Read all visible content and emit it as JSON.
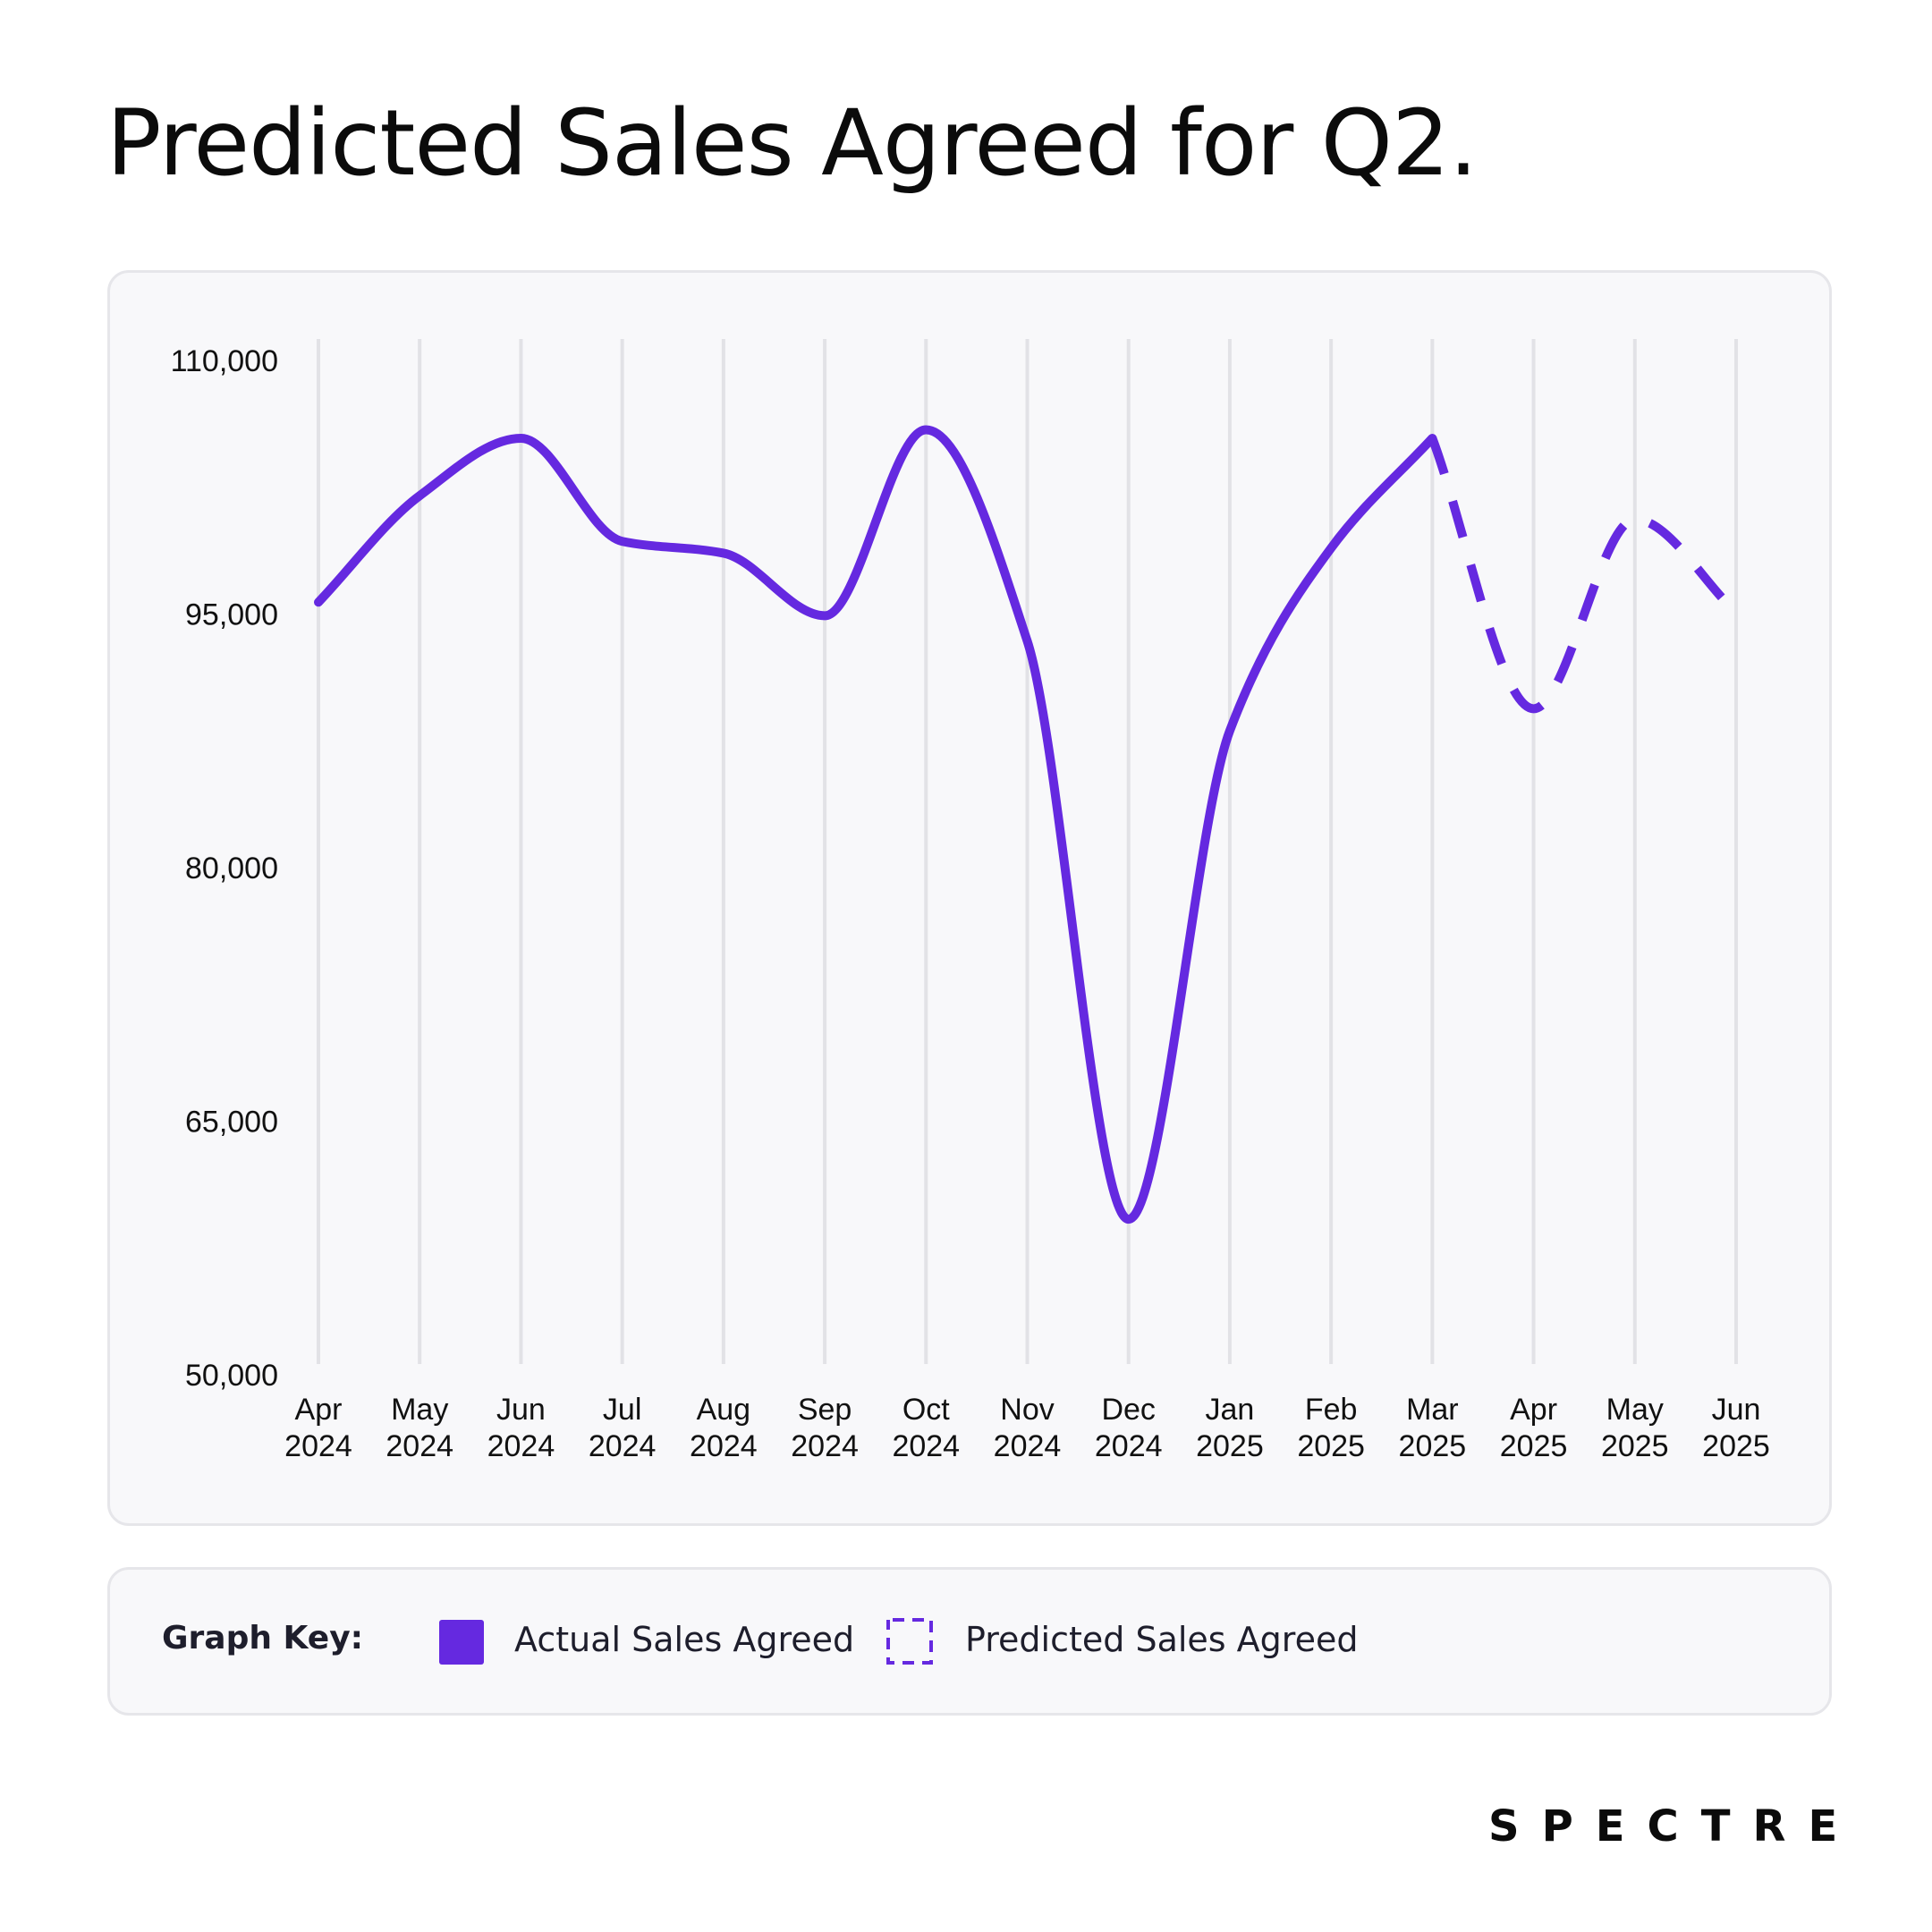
{
  "title": "Predicted Sales Agreed for Q2.",
  "colors": {
    "accent": "#6529e0",
    "grid": "#e2e2e6",
    "card_background": "#f8f8fa",
    "card_border": "#e6e6ea",
    "text": "#111111"
  },
  "chart_data": {
    "type": "line",
    "x": [
      "Apr 2024",
      "May 2024",
      "Jun 2024",
      "Jul 2024",
      "Aug 2024",
      "Sep 2024",
      "Oct 2024",
      "Nov 2024",
      "Dec 2024",
      "Jan 2025",
      "Feb 2025",
      "Mar 2025",
      "Apr 2025",
      "May 2025",
      "Jun 2025"
    ],
    "x_tick_labels": [
      [
        "Apr",
        "2024"
      ],
      [
        "May",
        "2024"
      ],
      [
        "Jun",
        "2024"
      ],
      [
        "Jul",
        "2024"
      ],
      [
        "Aug",
        "2024"
      ],
      [
        "Sep",
        "2024"
      ],
      [
        "Oct",
        "2024"
      ],
      [
        "Nov",
        "2024"
      ],
      [
        "Dec",
        "2024"
      ],
      [
        "Jan",
        "2025"
      ],
      [
        "Feb",
        "2025"
      ],
      [
        "Mar",
        "2025"
      ],
      [
        "Apr",
        "2025"
      ],
      [
        "May",
        "2025"
      ],
      [
        "Jun",
        "2025"
      ]
    ],
    "ylim": [
      50000,
      110000
    ],
    "yticks": [
      50000,
      65000,
      80000,
      95000,
      110000
    ],
    "ytick_labels": [
      "50,000",
      "65,000",
      "80,000",
      "95,000",
      "110,000"
    ],
    "grid": "vertical",
    "series": [
      {
        "name": "Actual Sales Agreed",
        "style": "solid",
        "x": [
          "Apr 2024",
          "May 2024",
          "Jun 2024",
          "Jul 2024",
          "Aug 2024",
          "Sep 2024",
          "Oct 2024",
          "Nov 2024",
          "Dec 2024",
          "Jan 2025",
          "Feb 2025",
          "Mar 2025"
        ],
        "values": [
          95700,
          102000,
          105400,
          99300,
          98600,
          94900,
          105900,
          93400,
          59200,
          88100,
          98900,
          105400
        ]
      },
      {
        "name": "Predicted Sales Agreed",
        "style": "dashed",
        "x": [
          "Mar 2025",
          "Apr 2025",
          "May 2025",
          "Jun 2025"
        ],
        "values": [
          105400,
          89400,
          100600,
          95100
        ]
      }
    ]
  },
  "legend": {
    "title": "Graph Key:",
    "items": [
      {
        "label": "Actual Sales Agreed",
        "style": "solid"
      },
      {
        "label": "Predicted Sales Agreed",
        "style": "dashed"
      }
    ]
  },
  "brand": "SPECTRE"
}
